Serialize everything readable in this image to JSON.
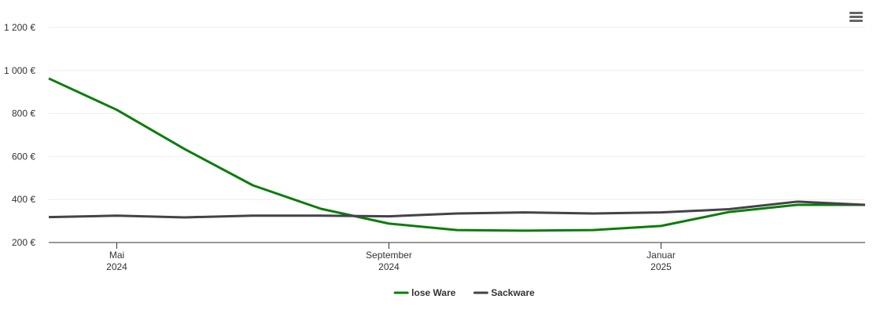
{
  "chart_data": {
    "type": "line",
    "x": [
      "2024-04",
      "2024-05",
      "2024-06",
      "2024-07",
      "2024-08",
      "2024-09",
      "2024-10",
      "2024-11",
      "2024-12",
      "2025-01",
      "2025-02",
      "2025-03",
      "2025-04"
    ],
    "series": [
      {
        "name": "lose Ware",
        "color": "#0a7d0a",
        "values": [
          963,
          817,
          634,
          466,
          357,
          288,
          258,
          255,
          258,
          277,
          342,
          375,
          375
        ]
      },
      {
        "name": "Sackware",
        "color": "#434348",
        "values": [
          318,
          325,
          317,
          325,
          325,
          322,
          335,
          340,
          335,
          340,
          355,
          390,
          375
        ]
      }
    ],
    "xlim": [
      "2024-04",
      "2025-04"
    ],
    "xticks": [
      {
        "value": "2024-05",
        "label": "Mai 2024"
      },
      {
        "value": "2024-09",
        "label": "September 2024"
      },
      {
        "value": "2025-01",
        "label": "Januar 2025"
      }
    ],
    "ylim": [
      200,
      1200
    ],
    "yticks": [
      {
        "value": 200,
        "label": "200 €"
      },
      {
        "value": 400,
        "label": "400 €"
      },
      {
        "value": 600,
        "label": "600 €"
      },
      {
        "value": 800,
        "label": "800 €"
      },
      {
        "value": 1000,
        "label": "1 000 €"
      },
      {
        "value": 1200,
        "label": "1 200 €"
      }
    ],
    "grid": true,
    "legend": "bottom"
  }
}
